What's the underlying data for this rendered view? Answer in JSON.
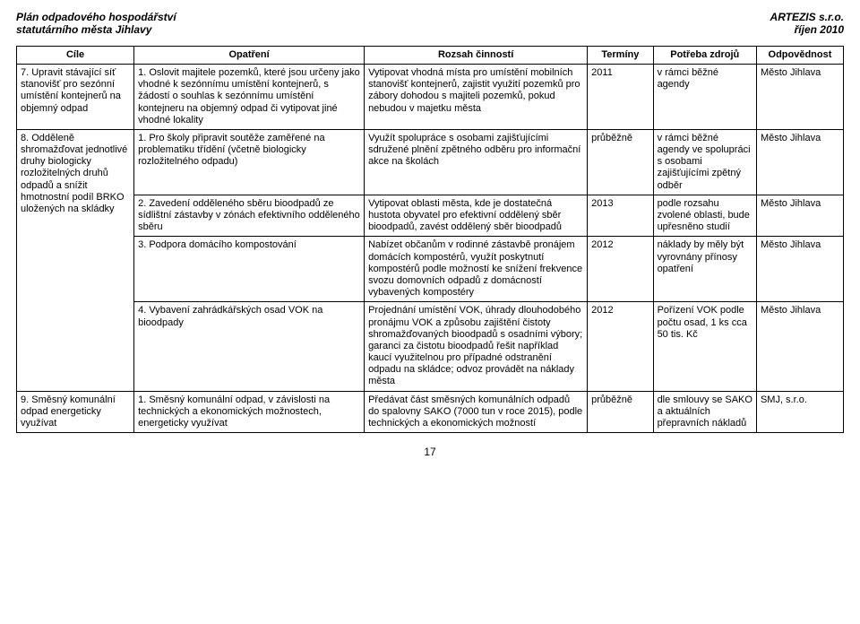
{
  "header": {
    "left_line1": "Plán odpadového hospodářství",
    "left_line2": "statutárního města Jihlavy",
    "right_line1": "ARTEZIS s.r.o.",
    "right_line2": "říjen 2010"
  },
  "columns": [
    "Cíle",
    "Opatření",
    "Rozsah činností",
    "Termíny",
    "Potřeba zdrojů",
    "Odpovědnost"
  ],
  "row7": {
    "cil": "7. Upravit stávající síť stanovišť pro sezónní umístění kontejnerů na objemný odpad",
    "opatreni": "1. Oslovit majitele pozemků, které jsou určeny jako vhodné k sezónnímu umístění kontejnerů, s žádostí o souhlas k sezónnímu umístění kontejneru na objemný odpad či vytipovat jiné vhodné lokality",
    "rozsah": "Vytipovat vhodná místa pro umístění mobilních stanovišť kontejnerů, zajistit využití pozemků pro zábory dohodou s majiteli pozemků, pokud nebudou v majetku města",
    "termin": "2011",
    "zdroje": "v rámci běžné agendy",
    "odpov": "Město Jihlava"
  },
  "row8cil": "8. Odděleně shromažďovat jednotlivé druhy biologicky rozložitelných druhů odpadů a snížit hmotnostní podíl BRKO uložených na skládky",
  "row8": [
    {
      "opatreni": "1. Pro školy připravit soutěže zaměřené na problematiku třídění (včetně biologicky rozložitelného odpadu)",
      "rozsah": "Využít spolupráce s osobami zajišťujícími sdružené plnění zpětného odběru pro informační akce na školách",
      "termin": "průběžně",
      "zdroje": "v rámci běžné agendy ve spolupráci s osobami zajišťujícími zpětný odběr",
      "odpov": "Město Jihlava"
    },
    {
      "opatreni": "2. Zavedení odděleného sběru bioodpadů ze sídlištní zástavby v zónách efektivního odděleného sběru",
      "rozsah": "Vytipovat oblasti města, kde je dostatečná hustota obyvatel pro efektivní oddělený sběr bioodpadů, zavést oddělený sběr bioodpadů",
      "termin": "2013",
      "zdroje": "podle rozsahu zvolené oblasti, bude upřesněno studií",
      "odpov": "Město Jihlava"
    },
    {
      "opatreni": "3. Podpora domácího kompostování",
      "rozsah": "Nabízet občanům v rodinné zástavbě pronájem domácích kompostérů, využít poskytnutí kompostérů podle možností ke snížení frekvence svozu domovních odpadů z domácností vybavených kompostéry",
      "termin": "2012",
      "zdroje": "náklady by měly být vyrovnány přínosy opatření",
      "odpov": "Město Jihlava"
    },
    {
      "opatreni": "4. Vybavení zahrádkářských osad VOK na bioodpady",
      "rozsah": "Projednání umístění VOK, úhrady dlouhodobého pronájmu VOK a způsobu zajištění čistoty shromažďovaných bioodpadů s osadními výbory; garanci za čistotu bioodpadů řešit například kaucí využitelnou pro případné odstranění odpadu na skládce; odvoz provádět na náklady města",
      "termin": "2012",
      "zdroje": "Pořízení VOK podle počtu osad, 1 ks cca 50 tis. Kč",
      "odpov": "Město Jihlava"
    }
  ],
  "row9": {
    "cil": "9. Směsný komunální odpad energeticky využívat",
    "opatreni": "1. Směsný komunální odpad, v závislosti na technických a ekonomických možnostech, energeticky využívat",
    "rozsah": "Předávat část směsných komunálních odpadů do spalovny SAKO (7000 tun v roce 2015), podle technických a ekonomických možností",
    "termin": "průběžně",
    "zdroje": "dle smlouvy se SAKO a aktuálních přepravních nákladů",
    "odpov": "SMJ, s.r.o."
  },
  "page": "17"
}
